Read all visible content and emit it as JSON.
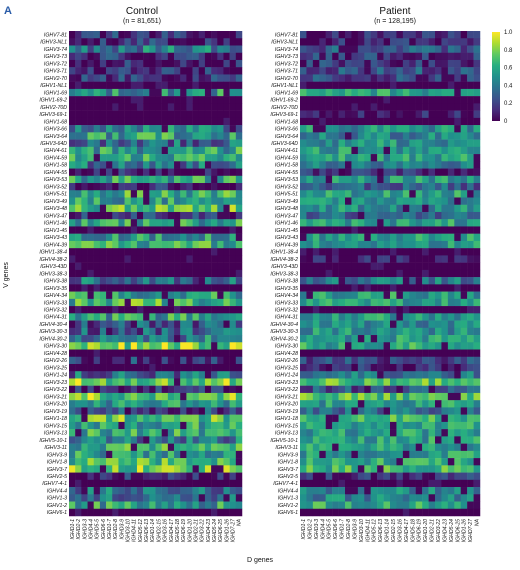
{
  "panel_label": "A",
  "chart_data": {
    "type": "heatmap",
    "xlabel": "D genes",
    "ylabel": "V genes",
    "colorbar": {
      "ticks": [
        0,
        0.2,
        0.4,
        0.6,
        0.8,
        1
      ],
      "tick_labels": [
        "0",
        "0.2",
        "0.4",
        "0.6",
        "0.8",
        "1.0"
      ],
      "range": [
        0,
        1
      ]
    },
    "x": [
      "IGHD1-1",
      "IGHD2-2",
      "IGHD3-3",
      "IGHD4-4",
      "IGHD5-5",
      "IGHD6-6",
      "IGHD1-7",
      "IGHD2-8",
      "IGHD3-9",
      "IGHD3-10",
      "IGHD4-11",
      "IGHD5-12",
      "IGHD6-13",
      "IGHD1-14",
      "IGHD2-15",
      "IGHD3-16",
      "IGHD4-17",
      "IGHD5-18",
      "IGHD6-19",
      "IGHD1-20",
      "IGHD2-21",
      "IGHD3-22",
      "IGHD4-23",
      "IGHD5-24",
      "IGHD6-25",
      "IGHD1-26",
      "IGHD7-27",
      "NA"
    ],
    "y": [
      "IGHV7-81",
      "IGHV3-NL1",
      "IGHV3-74",
      "IGHV3-73",
      "IGHV3-72",
      "IGHV3-71",
      "IGHV2-70",
      "IGHV1-NL1",
      "IGHV1-69",
      "IGHV1-69-2",
      "IGHV2-70D",
      "IGHV3-69-1",
      "IGHV1-68",
      "IGHV3-66",
      "IGHV3-64",
      "IGHV3-64D",
      "IGHV4-61",
      "IGHV4-59",
      "IGHV1-58",
      "IGHV4-55",
      "IGHV3-53",
      "IGHV3-52",
      "IGHV5-51",
      "IGHV3-49",
      "IGHV3-48",
      "IGHV3-47",
      "IGHV1-46",
      "IGHV1-45",
      "IGHV3-43",
      "IGHV4-39",
      "IGHV1-38-4",
      "IGHV4-38-2",
      "IGHV3-43D",
      "IGHV3-38-3",
      "IGHV3-38",
      "IGHV3-35",
      "IGHV4-34",
      "IGHV3-33",
      "IGHV3-32",
      "IGHV4-31",
      "IGHV4-30-4",
      "IGHV3-30-3",
      "IGHV4-30-2",
      "IGHV3-30",
      "IGHV4-28",
      "IGHV2-26",
      "IGHV3-25",
      "IGHV1-24",
      "IGHV3-23",
      "IGHV3-22",
      "IGHV3-21",
      "IGHV3-20",
      "IGHV3-19",
      "IGHV1-18",
      "IGHV3-15",
      "IGHV3-13",
      "IGHV5-10-1",
      "IGHV3-11",
      "IGHV3-9",
      "IGHV1-8",
      "IGHV3-7",
      "IGHV2-5",
      "IGHV7-4-1",
      "IGHV4-4",
      "IGHV1-3",
      "IGHV1-2",
      "IGHV6-1"
    ],
    "panels": [
      {
        "title": "Control",
        "subtitle": "(n = 81,651)",
        "row_levels": [
          0.1,
          0.1,
          0.4,
          0.1,
          0.05,
          0.1,
          0.1,
          0.0,
          0.55,
          0.0,
          0.0,
          0.0,
          0.0,
          0.45,
          0.55,
          0.35,
          0.55,
          0.6,
          0.4,
          0.05,
          0.55,
          0.05,
          0.6,
          0.55,
          0.7,
          0.1,
          0.55,
          0.0,
          0.55,
          0.6,
          0.0,
          0.0,
          0.0,
          0.0,
          0.35,
          0.0,
          0.55,
          0.65,
          0.0,
          0.55,
          0.25,
          0.3,
          0.45,
          0.8,
          0.0,
          0.15,
          0.0,
          0.35,
          0.8,
          0.05,
          0.75,
          0.55,
          0.2,
          0.7,
          0.6,
          0.6,
          0.4,
          0.6,
          0.55,
          0.65,
          0.75,
          0.05,
          0.0,
          0.4,
          0.35,
          0.55,
          0.0
        ]
      },
      {
        "title": "Patient",
        "subtitle": "(n = 128,195)",
        "row_levels": [
          0.1,
          0.1,
          0.25,
          0.15,
          0.15,
          0.25,
          0.2,
          0.0,
          0.6,
          0.0,
          0.0,
          0.05,
          0.0,
          0.5,
          0.45,
          0.5,
          0.55,
          0.55,
          0.45,
          0.1,
          0.55,
          0.3,
          0.55,
          0.5,
          0.5,
          0.3,
          0.55,
          0.0,
          0.55,
          0.55,
          0.0,
          0.05,
          0.0,
          0.0,
          0.4,
          0.0,
          0.55,
          0.55,
          0.0,
          0.55,
          0.45,
          0.5,
          0.55,
          0.6,
          0.0,
          0.2,
          0.1,
          0.4,
          0.7,
          0.25,
          0.7,
          0.55,
          0.35,
          0.65,
          0.55,
          0.55,
          0.55,
          0.55,
          0.55,
          0.6,
          0.65,
          0.15,
          0.0,
          0.45,
          0.45,
          0.6,
          0.0
        ]
      }
    ]
  }
}
